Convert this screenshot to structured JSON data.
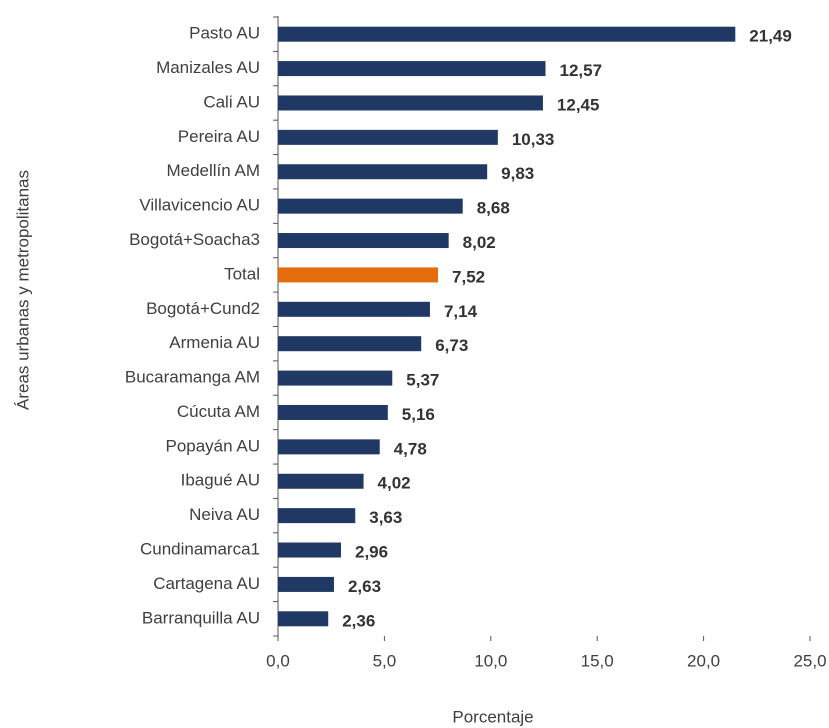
{
  "chart_data": {
    "type": "bar",
    "orientation": "horizontal",
    "x_label": "Porcentaje",
    "y_label": "Áreas urbanas y metropolitanas",
    "categories": [
      "Pasto AU",
      "Manizales AU",
      "Cali AU",
      "Pereira AU",
      "Medellín AM",
      "Villavicencio AU",
      "Bogotá+Soacha3",
      "Total",
      "Bogotá+Cund2",
      "Armenia AU",
      "Bucaramanga AM",
      "Cúcuta AM",
      "Popayán AU",
      "Ibagué AU",
      "Neiva AU",
      "Cundinamarca1",
      "Cartagena AU",
      "Barranquilla AU"
    ],
    "values": [
      21.49,
      12.57,
      12.45,
      10.33,
      9.83,
      8.68,
      8.02,
      7.52,
      7.14,
      6.73,
      5.37,
      5.16,
      4.78,
      4.02,
      3.63,
      2.96,
      2.63,
      2.36
    ],
    "value_labels": [
      "21,49",
      "12,57",
      "12,45",
      "10,33",
      "9,83",
      "8,68",
      "8,02",
      "7,52",
      "7,14",
      "6,73",
      "5,37",
      "5,16",
      "4,78",
      "4,02",
      "3,63",
      "2,96",
      "2,63",
      "2,36"
    ],
    "colors": [
      "#1f3864",
      "#1f3864",
      "#1f3864",
      "#1f3864",
      "#1f3864",
      "#1f3864",
      "#1f3864",
      "#e46c0a",
      "#1f3864",
      "#1f3864",
      "#1f3864",
      "#1f3864",
      "#1f3864",
      "#1f3864",
      "#1f3864",
      "#1f3864",
      "#1f3864",
      "#1f3864"
    ],
    "xlim": [
      0,
      25
    ],
    "xticks": [
      {
        "value": 0,
        "label": "0,0"
      },
      {
        "value": 5,
        "label": "5,0"
      },
      {
        "value": 10,
        "label": "10,0"
      },
      {
        "value": 15,
        "label": "15,0"
      },
      {
        "value": 20,
        "label": "20,0"
      },
      {
        "value": 25,
        "label": "25,0"
      }
    ],
    "grid": false
  }
}
